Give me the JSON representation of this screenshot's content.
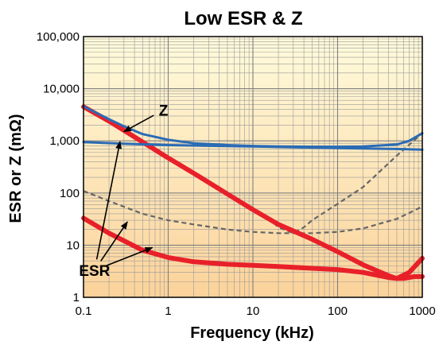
{
  "chart_data": {
    "type": "line",
    "title": "Low ESR & Z",
    "xlabel": "Frequency (kHz)",
    "ylabel": "ESR or Z (mΩ)",
    "x_scale": "log",
    "y_scale": "log",
    "xlim": [
      0.1,
      1000
    ],
    "ylim": [
      1,
      100000
    ],
    "x_ticks": [
      0.1,
      1,
      10,
      100,
      1000
    ],
    "x_tick_labels": [
      "0.1",
      "1",
      "10",
      "100",
      "1000"
    ],
    "y_ticks": [
      1,
      10,
      100,
      1000,
      10000,
      100000
    ],
    "y_tick_labels": [
      "1",
      "10",
      "100",
      "1,000",
      "10,000",
      "100,000"
    ],
    "grid": true,
    "background": "vertical gradient, pale yellow at top to light orange at bottom",
    "colors": {
      "red": "#e8202a",
      "blue": "#2a6bb5",
      "dashed": "#666666",
      "bg_top": "#fffbdc",
      "bg_bottom": "#fbd29a"
    },
    "series": [
      {
        "style": "red-thick-solid",
        "x": [
          0.1,
          0.2,
          0.5,
          1,
          2,
          5,
          10,
          20,
          50,
          100,
          200,
          400,
          500,
          600,
          800,
          1000
        ],
        "y": [
          4500,
          2400,
          950,
          470,
          240,
          96,
          48,
          25,
          13,
          7.5,
          4.2,
          2.6,
          2.3,
          2.3,
          2.5,
          2.5
        ]
      },
      {
        "style": "red-thick-solid",
        "x": [
          0.1,
          0.2,
          0.5,
          1,
          2,
          5,
          10,
          20,
          50,
          100,
          200,
          400,
          500,
          700,
          1000
        ],
        "y": [
          33,
          17,
          8,
          5.8,
          4.8,
          4.3,
          4.1,
          3.9,
          3.6,
          3.4,
          3.0,
          2.4,
          2.3,
          3.0,
          5.6
        ]
      },
      {
        "style": "blue-solid",
        "x": [
          0.1,
          0.2,
          0.3,
          0.5,
          1,
          2,
          5,
          10,
          20,
          50,
          100,
          200,
          500,
          700,
          1000
        ],
        "y": [
          4600,
          2600,
          1900,
          1350,
          1050,
          900,
          830,
          800,
          780,
          770,
          770,
          780,
          850,
          1000,
          1400
        ]
      },
      {
        "style": "blue-solid",
        "x": [
          0.1,
          0.3,
          1,
          10,
          100,
          500,
          1000
        ],
        "y": [
          950,
          880,
          830,
          780,
          730,
          700,
          680
        ]
      },
      {
        "style": "gray-dashed",
        "x": [
          0.1,
          0.2,
          0.5,
          1,
          2,
          5,
          10,
          15,
          20,
          30,
          40,
          50,
          100,
          200,
          500,
          1000
        ],
        "y": [
          4300,
          2200,
          930,
          460,
          235,
          100,
          50,
          33,
          22,
          17,
          22,
          30,
          62,
          130,
          520,
          1400
        ]
      },
      {
        "style": "gray-dashed",
        "x": [
          0.1,
          0.2,
          0.5,
          1,
          2,
          5,
          10,
          20,
          50,
          100,
          200,
          500,
          1000
        ],
        "y": [
          110,
          70,
          40,
          30,
          25,
          20,
          18,
          17,
          17,
          18,
          21,
          32,
          55
        ]
      }
    ],
    "annotations": [
      {
        "text": "Z",
        "x": 0.88,
        "y": 3900,
        "arrows_to": [
          [
            0.3,
            1500
          ]
        ]
      },
      {
        "text": "ESR",
        "x": 0.135,
        "y": 3.3,
        "arrows_to": [
          [
            0.27,
            970
          ],
          [
            0.33,
            28
          ],
          [
            0.65,
            9
          ]
        ]
      }
    ]
  }
}
